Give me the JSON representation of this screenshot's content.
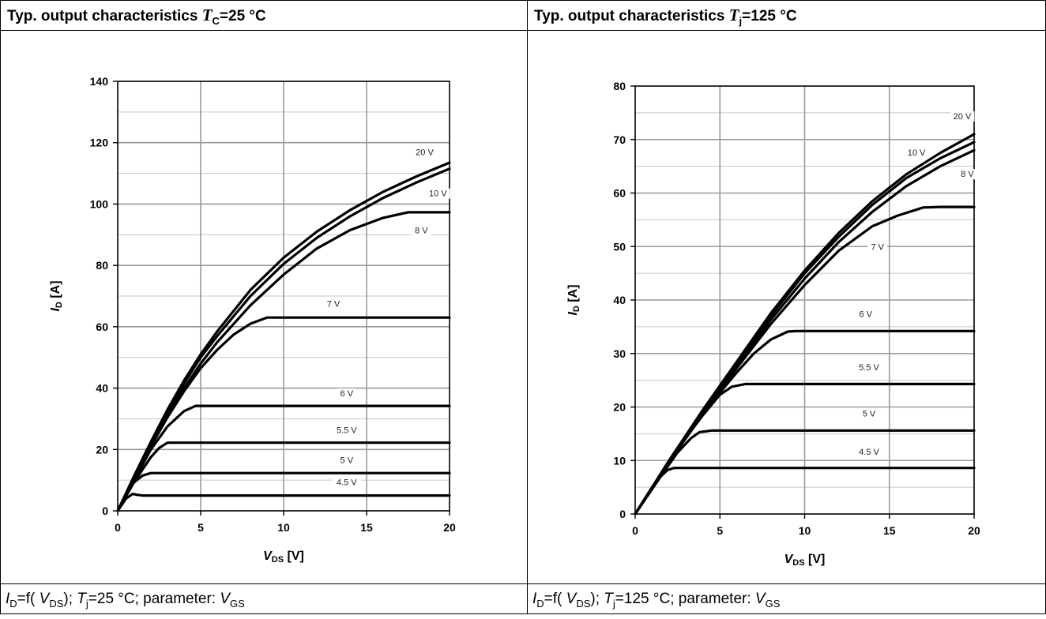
{
  "panels": [
    {
      "header": {
        "prefix": "Typ. output characteristics ",
        "sym": "T",
        "sub": "C",
        "suffix": "=25 °C"
      },
      "footer": {
        "a": "I",
        "a_sub": "D",
        "b": "=f( ",
        "c": "V",
        "c_sub": "DS",
        "d": "); ",
        "e": "T",
        "e_sub": "j",
        "f": "=25 °C; parameter:  ",
        "g": "V",
        "g_sub": "GS"
      }
    },
    {
      "header": {
        "prefix": "Typ. output characteristics ",
        "sym": "T",
        "sub": "j",
        "suffix": "=125 °C"
      },
      "footer": {
        "a": "I",
        "a_sub": "D",
        "b": "=f( ",
        "c": "V",
        "c_sub": "DS",
        "d": "); ",
        "e": "T",
        "e_sub": "j",
        "f": "=125 °C; parameter:  ",
        "g": "V",
        "g_sub": "GS"
      }
    }
  ],
  "chart_data": [
    {
      "type": "line",
      "title": "Typ. output characteristics TC=25 °C",
      "xlabel": "VDS [V]",
      "ylabel": "ID [A]",
      "xlim": [
        0,
        20
      ],
      "ylim": [
        0,
        140
      ],
      "xticks": [
        0,
        5,
        10,
        15,
        20
      ],
      "yticks": [
        0,
        20,
        40,
        60,
        80,
        100,
        120,
        140
      ],
      "grid": true,
      "series": [
        {
          "name": "20 V",
          "x": [
            0,
            1,
            2,
            3,
            4,
            5,
            6,
            8,
            10,
            12,
            14,
            16,
            18,
            20
          ],
          "y": [
            0,
            11.5,
            22.5,
            33,
            42.5,
            51,
            58.5,
            72,
            82.5,
            91,
            98,
            104,
            109,
            113.5
          ]
        },
        {
          "name": "10 V",
          "x": [
            0,
            1,
            2,
            3,
            4,
            5,
            6,
            8,
            10,
            12,
            14,
            16,
            18,
            20
          ],
          "y": [
            0,
            11,
            22,
            32,
            41.5,
            50,
            57,
            70,
            80.5,
            89,
            96,
            102,
            107,
            111.5
          ]
        },
        {
          "name": "8 V",
          "x": [
            0,
            1,
            2,
            3,
            4,
            5,
            6,
            8,
            10,
            12,
            14,
            16,
            17.5,
            20
          ],
          "y": [
            0,
            10.5,
            21,
            31,
            40,
            48,
            55,
            67,
            77,
            85.5,
            91.5,
            95.5,
            97.3,
            97.3
          ]
        },
        {
          "name": "7 V",
          "x": [
            0,
            1,
            2,
            3,
            4,
            5,
            6,
            7,
            8,
            9,
            10,
            15,
            20
          ],
          "y": [
            0,
            10.5,
            21,
            30.5,
            39,
            46.5,
            52.5,
            57.5,
            61,
            63,
            63,
            63,
            63
          ]
        },
        {
          "name": "6 V",
          "x": [
            0,
            1,
            2,
            3,
            4,
            4.7,
            5,
            10,
            15,
            20
          ],
          "y": [
            0,
            10,
            20,
            27.5,
            32.5,
            34.2,
            34.2,
            34.2,
            34.2,
            34.2
          ]
        },
        {
          "name": "5.5 V",
          "x": [
            0,
            1,
            2,
            2.5,
            3,
            5,
            10,
            15,
            20
          ],
          "y": [
            0,
            9.5,
            17.5,
            20.5,
            22.2,
            22.2,
            22.2,
            22.2,
            22.2
          ]
        },
        {
          "name": "5 V",
          "x": [
            0,
            0.8,
            1.5,
            2,
            2.5,
            5,
            10,
            15,
            20
          ],
          "y": [
            0,
            8.5,
            11.5,
            12.3,
            12.3,
            12.3,
            12.3,
            12.3,
            12.3
          ]
        },
        {
          "name": "4.5 V",
          "x": [
            0,
            0.5,
            0.9,
            1.2,
            1.5,
            5,
            10,
            15,
            20
          ],
          "y": [
            0,
            4,
            5.5,
            5.2,
            5,
            5,
            5,
            5,
            5
          ]
        }
      ]
    },
    {
      "type": "line",
      "title": "Typ. output characteristics Tj=125 °C",
      "xlabel": "VDS [V]",
      "ylabel": "ID [A]",
      "xlim": [
        0,
        20
      ],
      "ylim": [
        0,
        80
      ],
      "xticks": [
        0,
        5,
        10,
        15,
        20
      ],
      "yticks": [
        0,
        10,
        20,
        30,
        40,
        50,
        60,
        70,
        80
      ],
      "grid": true,
      "series": [
        {
          "name": "20 V",
          "x": [
            0,
            2,
            4,
            6,
            8,
            10,
            12,
            14,
            16,
            18,
            20
          ],
          "y": [
            0,
            10,
            19.5,
            28.5,
            37.5,
            45.5,
            52.5,
            58.5,
            63.5,
            67.5,
            71
          ]
        },
        {
          "name": "10 V",
          "x": [
            0,
            2,
            4,
            6,
            8,
            10,
            12,
            14,
            16,
            18,
            20
          ],
          "y": [
            0,
            10,
            19.3,
            28.2,
            37,
            45,
            51.8,
            57.8,
            62.8,
            66.5,
            69.5
          ]
        },
        {
          "name": "8 V",
          "x": [
            0,
            2,
            4,
            6,
            8,
            10,
            12,
            14,
            16,
            18,
            20
          ],
          "y": [
            0,
            9.8,
            19,
            27.8,
            36.3,
            44,
            50.8,
            56.5,
            61.3,
            65,
            68
          ]
        },
        {
          "name": "7 V",
          "x": [
            0,
            2,
            4,
            6,
            8,
            10,
            12,
            14,
            15.5,
            17,
            18,
            20
          ],
          "y": [
            0,
            9.7,
            18.8,
            27.3,
            35.5,
            42.8,
            49.2,
            53.8,
            55.8,
            57.3,
            57.4,
            57.4
          ]
        },
        {
          "name": "6 V",
          "x": [
            0,
            2,
            4,
            5,
            6,
            7,
            8,
            9,
            9.5,
            12,
            15,
            20
          ],
          "y": [
            0,
            9.7,
            18.7,
            22.7,
            26.5,
            30,
            32.6,
            34.1,
            34.2,
            34.2,
            34.2,
            34.2
          ]
        },
        {
          "name": "5.5 V",
          "x": [
            0,
            2,
            3,
            4,
            5,
            5.7,
            6.5,
            10,
            15,
            20
          ],
          "y": [
            0,
            9.5,
            14.3,
            18.5,
            22.3,
            23.8,
            24.3,
            24.3,
            24.3,
            24.3
          ]
        },
        {
          "name": "5 V",
          "x": [
            0,
            1.5,
            2.5,
            3.3,
            3.8,
            4.5,
            10,
            15,
            20
          ],
          "y": [
            0,
            7,
            11.5,
            14.2,
            15.3,
            15.6,
            15.6,
            15.6,
            15.6
          ]
        },
        {
          "name": "4.5 V",
          "x": [
            0,
            1,
            1.5,
            1.9,
            2.3,
            5,
            10,
            15,
            20
          ],
          "y": [
            0,
            5,
            7,
            8.2,
            8.6,
            8.6,
            8.6,
            8.6,
            8.6
          ]
        }
      ]
    }
  ]
}
